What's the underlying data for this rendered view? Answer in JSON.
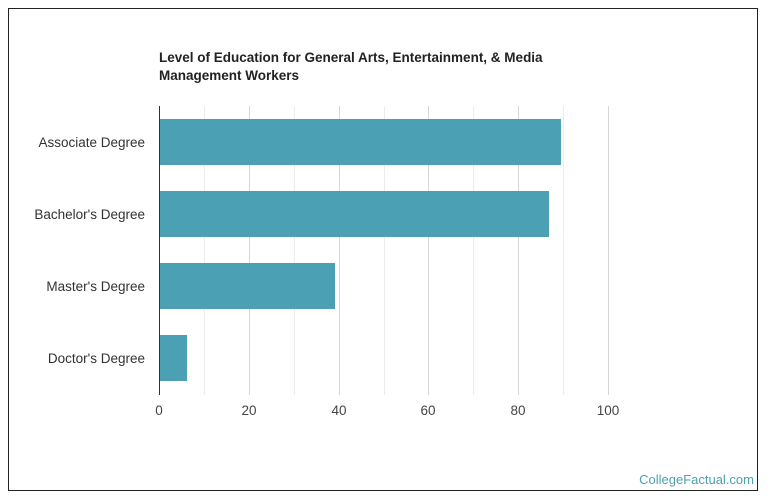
{
  "chart_data": {
    "type": "bar",
    "orientation": "horizontal",
    "title": "Level of Education for General Arts, Entertainment, & Media Management Workers",
    "categories": [
      "Associate Degree",
      "Bachelor's Degree",
      "Master's Degree",
      "Doctor's Degree"
    ],
    "values": [
      89.5,
      86.8,
      39.2,
      6.2
    ],
    "xlabel": "",
    "ylabel": "",
    "xlim": [
      0,
      100
    ],
    "xticks": [
      "0",
      "20",
      "40",
      "60",
      "80",
      "100"
    ],
    "grid": true,
    "legend": null,
    "bar_color": "#4ba1b3"
  },
  "title_line1": "Level of Education for General Arts, Entertainment, & Media",
  "title_line2": "Management Workers",
  "credit": "CollegeFactual.com"
}
